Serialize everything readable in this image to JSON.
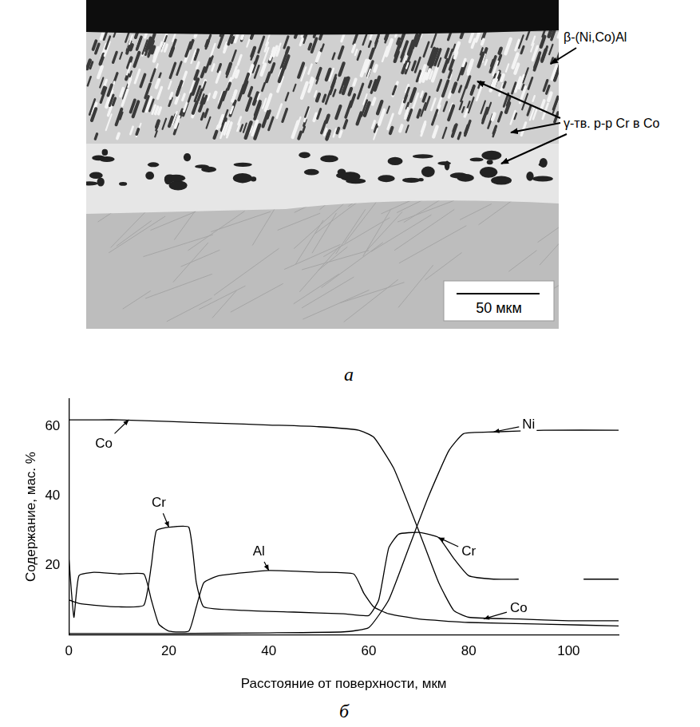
{
  "micrograph": {
    "panel_label": "а",
    "labels": [
      "β-(Ni,Co)Al",
      "γ-тв. р-р Cr в Co"
    ],
    "scale_bar": "50 мкм"
  },
  "chart_data": {
    "type": "line",
    "panel_label": "б",
    "x_label": "Расстояние от поверхности, мкм",
    "y_label": "Содержание, мас. %",
    "xlim": [
      0,
      110
    ],
    "xticks": [
      0,
      20,
      40,
      60,
      80,
      100
    ],
    "ylim": [
      0,
      68
    ],
    "yticks": [
      20,
      40,
      60
    ],
    "grid": false,
    "legend": false,
    "series": [
      {
        "name": "Co",
        "color": "#000000",
        "x": [
          0,
          5,
          10,
          20,
          30,
          40,
          50,
          58,
          61,
          65,
          70,
          74,
          77,
          80,
          90,
          100,
          110
        ],
        "values": [
          62,
          62,
          62,
          61.5,
          61,
          60.5,
          60,
          59,
          57,
          48,
          30,
          15,
          7,
          5,
          4.5,
          4,
          4
        ],
        "labels": [
          {
            "x": 12,
            "y": 62,
            "label_x": 7,
            "label_y": 55
          },
          {
            "x": 83,
            "y": 4.5,
            "label_x": 90,
            "label_y": 7.5
          }
        ]
      },
      {
        "name": "Ni",
        "color": "#000000",
        "x": [
          0,
          20,
          40,
          55,
          60,
          64,
          68,
          72,
          76,
          79,
          85,
          95,
          110
        ],
        "values": [
          0.3,
          0.3,
          0.5,
          0.8,
          2,
          10,
          25,
          40,
          53,
          58,
          58.5,
          59,
          59
        ],
        "labels": [
          {
            "x": 85,
            "y": 58.5,
            "label_x": 92,
            "label_y": 60.5
          }
        ]
      },
      {
        "name": "Cr",
        "color": "#000000",
        "x": [
          0,
          2,
          5,
          10,
          15,
          16.5,
          17.5,
          20,
          24,
          25.5,
          27,
          35,
          45,
          55,
          60,
          62,
          64,
          66,
          70,
          74,
          77,
          80,
          85,
          90,
          95,
          103,
          110
        ],
        "values": [
          10,
          9,
          8.5,
          8,
          8.5,
          20,
          30,
          31,
          31,
          15,
          8,
          7,
          6.5,
          6,
          5.5,
          10,
          25,
          29,
          29.5,
          28,
          22,
          17,
          16,
          16,
          null,
          16,
          16
        ],
        "labels": [
          {
            "x": 20,
            "y": 31,
            "label_x": 18,
            "label_y": 38
          },
          {
            "x": 74,
            "y": 28,
            "label_x": 80,
            "label_y": 24
          }
        ]
      },
      {
        "name": "Al",
        "color": "#000000",
        "x": [
          0,
          1,
          2,
          5,
          10,
          15,
          16.5,
          18,
          20,
          24,
          25.5,
          27,
          30,
          40,
          50,
          57,
          59,
          61,
          64,
          70,
          80,
          95,
          110
        ],
        "values": [
          22,
          5,
          17,
          18,
          17.5,
          17.5,
          10,
          3,
          1,
          1,
          8,
          15,
          17,
          18.5,
          18,
          17.5,
          12,
          8,
          6,
          4.5,
          3.5,
          3,
          2.5
        ],
        "labels": [
          {
            "x": 40,
            "y": 18.5,
            "label_x": 38,
            "label_y": 24
          }
        ]
      }
    ]
  }
}
